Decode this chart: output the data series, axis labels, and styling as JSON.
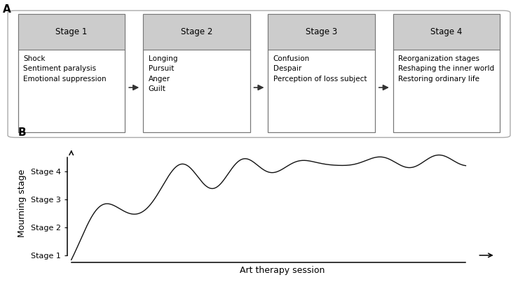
{
  "panel_A_label": "A",
  "panel_B_label": "B",
  "stages": [
    "Stage 1",
    "Stage 2",
    "Stage 3",
    "Stage 4"
  ],
  "stage_contents": [
    "Shock\nSentiment paralysis\nEmotional suppression",
    "Longing\nPursuit\nAnger\nGuilt",
    "Confusion\nDespair\nPerception of loss subject",
    "Reorganization stages\nReshaping the inner world\nRestoring ordinary life"
  ],
  "box_facecolor": "#ffffff",
  "box_edgecolor": "#777777",
  "header_facecolor": "#cccccc",
  "outer_box_edgecolor": "#aaaaaa",
  "arrow_color": "#333333",
  "line_color": "#111111",
  "xlabel": "Art therapy session",
  "ylabel": "Mourning stage",
  "ytick_labels": [
    "Stage 1",
    "Stage 2",
    "Stage 3",
    "Stage 4"
  ],
  "ytick_positions": [
    1,
    2,
    3,
    4
  ],
  "title_fontsize": 8.5,
  "content_fontsize": 7.5,
  "axis_label_fontsize": 9,
  "tick_label_fontsize": 8
}
